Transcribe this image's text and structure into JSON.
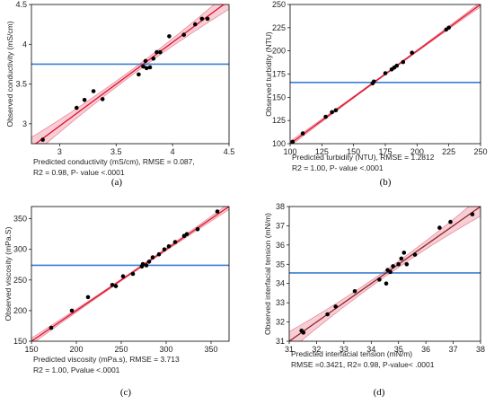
{
  "chart_data": [
    {
      "type": "scatter",
      "panel_label": "(a)",
      "xlabel": "Predicted conductivity (mS/cm)",
      "ylabel": "Observed conductivity (mS/cm)",
      "caption_lines": [
        "Predicted conductivity (mS/cm), RMSE = 0.087,",
        "R2 = 0.98, P- value <.0001"
      ],
      "xlim": [
        2.75,
        4.5
      ],
      "ylim": [
        2.75,
        4.5
      ],
      "xticks": [
        3,
        3.5,
        4,
        4.5
      ],
      "yticks": [
        3,
        3.5,
        4,
        4.5
      ],
      "mean_y": 3.75,
      "fit": {
        "x1": 2.75,
        "y1": 2.71,
        "x2": 4.5,
        "y2": 4.55
      },
      "band_halfwidth": [
        0.12,
        0.035,
        0.11
      ],
      "points": [
        [
          2.85,
          2.8
        ],
        [
          3.15,
          3.2
        ],
        [
          3.22,
          3.3
        ],
        [
          3.3,
          3.41
        ],
        [
          3.38,
          3.31
        ],
        [
          3.7,
          3.62
        ],
        [
          3.74,
          3.72
        ],
        [
          3.76,
          3.79
        ],
        [
          3.77,
          3.7
        ],
        [
          3.8,
          3.71
        ],
        [
          3.83,
          3.82
        ],
        [
          3.86,
          3.9
        ],
        [
          3.89,
          3.9
        ],
        [
          3.97,
          4.1
        ],
        [
          4.1,
          4.12
        ],
        [
          4.2,
          4.25
        ],
        [
          4.26,
          4.32
        ],
        [
          4.31,
          4.32
        ]
      ]
    },
    {
      "type": "scatter",
      "panel_label": "(b)",
      "xlabel": "Predicted turbidity (NTU)",
      "ylabel": "Observed turbidity (NTU)",
      "caption_lines": [
        "Predicted turbidity (NTU), RMSE = 1.2812",
        "R2 = 1.00, P- value <.0001"
      ],
      "xlim": [
        100,
        250
      ],
      "ylim": [
        100,
        250
      ],
      "xticks": [
        100,
        125,
        150,
        175,
        200,
        225,
        250
      ],
      "yticks": [
        100,
        125,
        150,
        175,
        200,
        225,
        250
      ],
      "mean_y": 166,
      "fit": {
        "x1": 100,
        "y1": 100,
        "x2": 250,
        "y2": 250
      },
      "band_halfwidth": [
        2.5,
        0.8,
        2.5
      ],
      "points": [
        [
          102,
          102
        ],
        [
          110,
          111
        ],
        [
          128,
          129
        ],
        [
          133,
          134
        ],
        [
          136,
          136
        ],
        [
          165,
          165
        ],
        [
          166,
          167
        ],
        [
          175,
          176
        ],
        [
          180,
          180
        ],
        [
          182,
          182
        ],
        [
          184,
          184
        ],
        [
          189,
          188
        ],
        [
          196,
          198
        ],
        [
          223,
          223
        ],
        [
          225,
          225
        ]
      ]
    },
    {
      "type": "scatter",
      "panel_label": "(c)",
      "xlabel": "Predicted viscosity (mPa.s)",
      "ylabel": "Observed viscosity (mPa.S)",
      "caption_lines": [
        "Predicted viscosity (mPa.s), RMSE = 3.713",
        "R2 = 1.00, Pvalue <.0001"
      ],
      "xlim": [
        150,
        370
      ],
      "ylim": [
        150,
        370
      ],
      "xticks": [
        150,
        200,
        250,
        300,
        350
      ],
      "yticks": [
        150,
        200,
        250,
        300,
        350
      ],
      "mean_y": 274,
      "fit": {
        "x1": 150,
        "y1": 150,
        "x2": 370,
        "y2": 370
      },
      "band_halfwidth": [
        5,
        1.5,
        5
      ],
      "points": [
        [
          172,
          172
        ],
        [
          195,
          200
        ],
        [
          213,
          222
        ],
        [
          240,
          242
        ],
        [
          244,
          240
        ],
        [
          252,
          256
        ],
        [
          263,
          260
        ],
        [
          273,
          272
        ],
        [
          274,
          276
        ],
        [
          278,
          274
        ],
        [
          281,
          280
        ],
        [
          285,
          287
        ],
        [
          292,
          292
        ],
        [
          298,
          300
        ],
        [
          303,
          305
        ],
        [
          310,
          312
        ],
        [
          320,
          322
        ],
        [
          323,
          325
        ],
        [
          335,
          333
        ],
        [
          357,
          362
        ]
      ]
    },
    {
      "type": "scatter",
      "panel_label": "(d)",
      "xlabel": "Predicted interfacial tension (mN/m)",
      "ylabel": "Observed interfacial tension (mN/m)",
      "caption_lines": [
        "Predicted interfacial tension (mN/m)",
        "RMSE =0.3421, R2= 0.98, P-value< .0001"
      ],
      "xlim": [
        31,
        38
      ],
      "ylim": [
        31,
        38
      ],
      "xticks": [
        31,
        32,
        33,
        34,
        35,
        36,
        37,
        38
      ],
      "yticks": [
        31,
        32,
        33,
        34,
        35,
        36,
        37,
        38
      ],
      "mean_y": 34.55,
      "fit": {
        "x1": 31,
        "y1": 31,
        "x2": 38,
        "y2": 38
      },
      "band_halfwidth": [
        0.5,
        0.15,
        0.5
      ],
      "points": [
        [
          31.45,
          31.55
        ],
        [
          31.52,
          31.45
        ],
        [
          32.4,
          32.4
        ],
        [
          32.7,
          32.8
        ],
        [
          33.4,
          33.6
        ],
        [
          34.3,
          34.2
        ],
        [
          34.55,
          34.0
        ],
        [
          34.6,
          34.7
        ],
        [
          34.7,
          34.6
        ],
        [
          34.8,
          34.9
        ],
        [
          35.0,
          35.0
        ],
        [
          35.1,
          35.3
        ],
        [
          35.2,
          35.6
        ],
        [
          35.3,
          35.0
        ],
        [
          35.6,
          35.5
        ],
        [
          36.5,
          36.9
        ],
        [
          36.9,
          37.2
        ],
        [
          37.7,
          37.6
        ]
      ]
    }
  ],
  "colors": {
    "fit_ac": "#e0102a",
    "fit_bd": "#8b2323",
    "band_fill": "#f7c6cf",
    "band_edge": "#e88c9b",
    "mean_line": "#3a7fd0",
    "point": "#000000"
  }
}
